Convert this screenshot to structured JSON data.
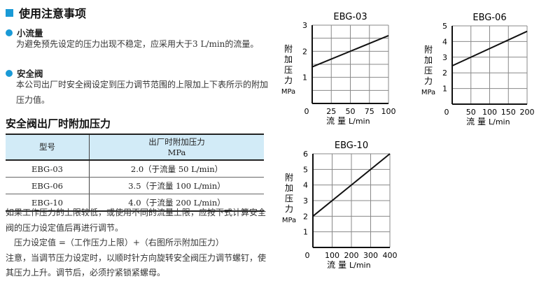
{
  "section_title": "使用注意事项",
  "notes": [
    {
      "title": "小流量",
      "text": "为避免预先设定的压力出现不稳定，应采用大于3 L/min的流量。"
    },
    {
      "title": "安全阀",
      "text": "本公司出厂时安全阀设定到压力调节范围的上限加上下表所示的附加压力值。"
    }
  ],
  "table_title": "安全阀出厂时附加压力",
  "table": {
    "headers": [
      "型号",
      "出厂时附加压力",
      "MPa"
    ],
    "rows": [
      [
        "EBG-03",
        "2.0（于流量  50 L/min）"
      ],
      [
        "EBG-06",
        "3.5（于流量 100 L/min）"
      ],
      [
        "EBG-10",
        "4.0（于流量 200 L/min）"
      ]
    ]
  },
  "body": [
    "如果工作压力的上限较低，或使用不同的流量上限，应按下式计算安全阀的压力设定值后再进行调节。",
    "　压力设定值 =（工作压力上限）+（右图所示附加压力）",
    "注意，当调节压力设定时，以顺时针方向旋转安全阀压力调节螺钉，使其压力上升。调节后，必须拧紧锁紧螺母。"
  ],
  "colors": {
    "accent": "#1a9ad6",
    "table_header": "#d2ebf7"
  },
  "chart_data": [
    {
      "type": "line",
      "title": "EBG-03",
      "ylabel": "附加压力",
      "yunit": "MPa",
      "xlabel": "流 量",
      "xunit": "L/min",
      "xlim": [
        0,
        100
      ],
      "ylim": [
        0,
        3
      ],
      "xticks": [
        0,
        25,
        50,
        75,
        100
      ],
      "yticks": [
        1,
        2,
        3
      ],
      "y_grid_step": 0.5,
      "grid": true,
      "series": [
        {
          "x": [
            0,
            100
          ],
          "y": [
            1.4,
            2.6
          ]
        }
      ]
    },
    {
      "type": "line",
      "title": "EBG-06",
      "ylabel": "附加压力",
      "yunit": "MPa",
      "xlabel": "流 量",
      "xunit": "L/min",
      "xlim": [
        0,
        200
      ],
      "ylim": [
        0,
        5
      ],
      "xticks": [
        0,
        50,
        100,
        150,
        200
      ],
      "yticks": [
        1,
        2,
        3,
        4,
        5
      ],
      "y_grid_step": 1,
      "grid": true,
      "series": [
        {
          "x": [
            0,
            200
          ],
          "y": [
            2.45,
            4.65
          ]
        }
      ]
    },
    {
      "type": "line",
      "title": "EBG-10",
      "ylabel": "附加压力",
      "yunit": "MPa",
      "xlabel": "流 量",
      "xunit": "L/min",
      "xlim": [
        0,
        400
      ],
      "ylim": [
        0,
        6
      ],
      "xticks": [
        0,
        100,
        200,
        300,
        400
      ],
      "yticks": [
        1,
        2,
        3,
        4,
        5,
        6
      ],
      "y_grid_step": 1,
      "grid": true,
      "series": [
        {
          "x": [
            0,
            400
          ],
          "y": [
            2,
            6
          ]
        }
      ]
    }
  ]
}
